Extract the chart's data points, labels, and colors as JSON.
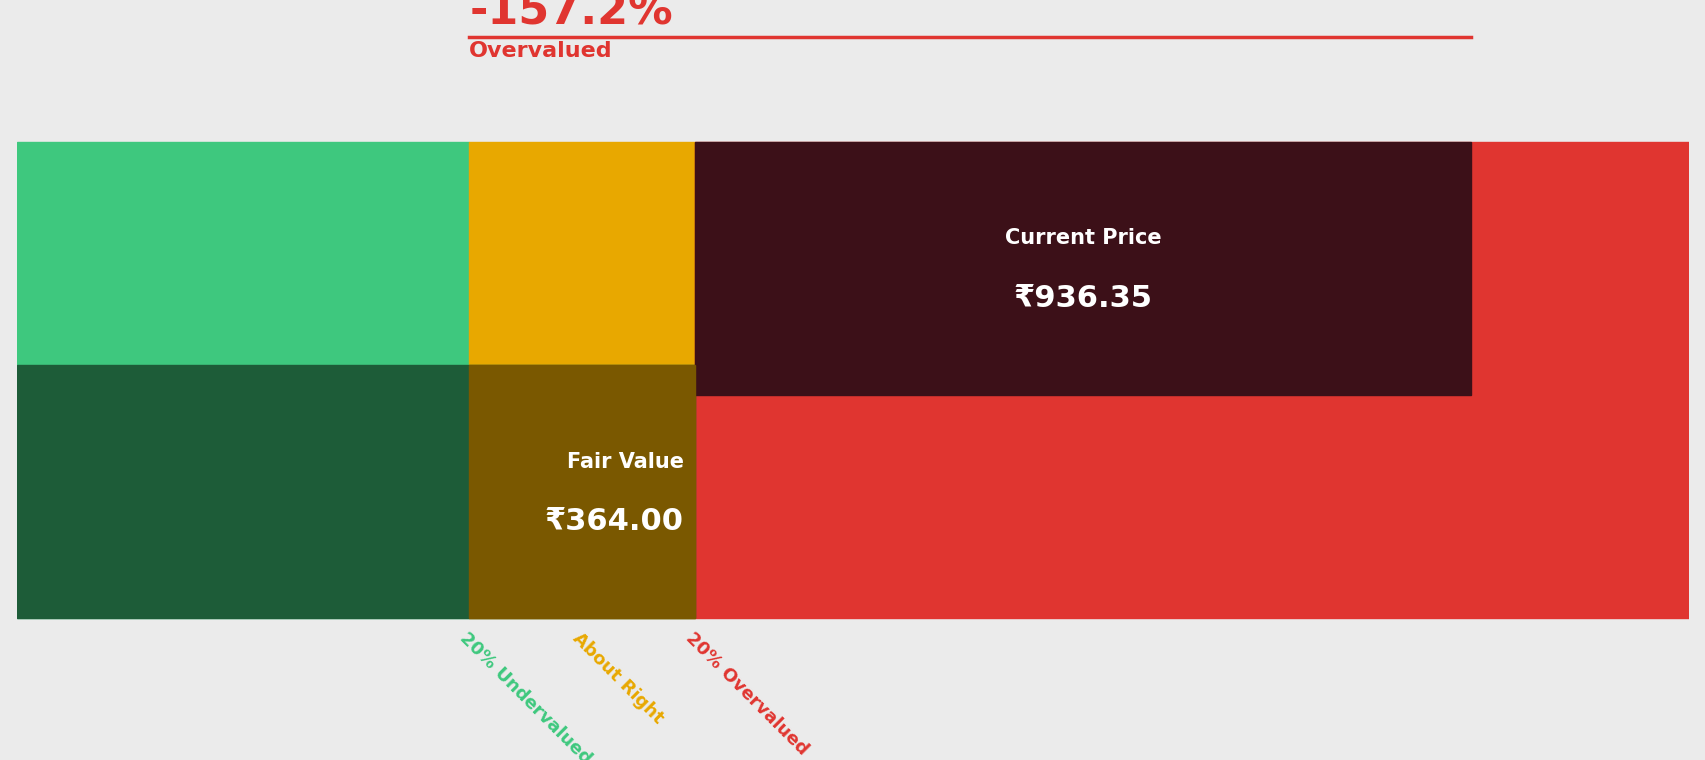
{
  "fair_value": 364.0,
  "current_price": 936.35,
  "pct_diff": "-157.2%",
  "pct_label": "Overvalued",
  "bg_color": "#ebebeb",
  "undervalued_color": "#3ec87e",
  "about_right_color": "#e8a800",
  "overvalued_color": "#e03530",
  "dark_green": "#1d5c38",
  "dark_gold": "#7a5800",
  "dark_red": "#3c1018",
  "red_text": "#e03530",
  "white": "#ffffff",
  "tick_label_undervalued": "20% Undervalued",
  "tick_label_about_right": "About Right",
  "tick_label_overvalued": "20% Overvalued",
  "undervalued_color_text": "#3ec87e",
  "about_right_color_text": "#e8a800",
  "overvalued_color_text": "#e03530"
}
